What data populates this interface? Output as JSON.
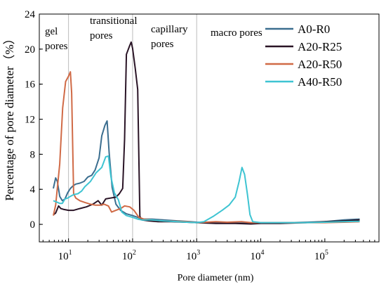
{
  "chart_data": {
    "type": "line",
    "xlabel": "Pore diameter (nm)",
    "ylabel": "Percentage of pore diameter（%）",
    "x_scale": "log",
    "xlim": [
      3.5,
      700000
    ],
    "ylim": [
      -2,
      24
    ],
    "x_ticks": [
      10,
      100,
      1000,
      10000,
      100000
    ],
    "x_tick_labels": [
      {
        "base": "10",
        "exp": "1"
      },
      {
        "base": "10",
        "exp": "2"
      },
      {
        "base": "10",
        "exp": "3"
      },
      {
        "base": "10",
        "exp": "4"
      },
      {
        "base": "10",
        "exp": "5"
      }
    ],
    "y_ticks": [
      0,
      4,
      8,
      12,
      16,
      20,
      24
    ],
    "y_tick_labels": [
      "0",
      "4",
      "8",
      "12",
      "16",
      "20",
      "24"
    ],
    "region_dividers": [
      10,
      100,
      1000
    ],
    "region_labels": [
      {
        "lines": [
          "gel",
          "pores"
        ]
      },
      {
        "lines": [
          "transitional",
          "pores"
        ]
      },
      {
        "lines": [
          "capillary",
          "pores"
        ]
      },
      {
        "lines": [
          "macro pores"
        ]
      }
    ],
    "legend_position": "top-right",
    "series": [
      {
        "name": "A0-R0",
        "color": "#3b6e8f",
        "points": [
          [
            5.8,
            4.1
          ],
          [
            6.3,
            5.3
          ],
          [
            6.7,
            4.9
          ],
          [
            7.3,
            3.2
          ],
          [
            8.0,
            2.7
          ],
          [
            8.8,
            2.9
          ],
          [
            9.7,
            3.6
          ],
          [
            10.7,
            4.1
          ],
          [
            11.8,
            4.4
          ],
          [
            13,
            4.6
          ],
          [
            15,
            4.7
          ],
          [
            17.5,
            4.9
          ],
          [
            20,
            5.4
          ],
          [
            23,
            5.6
          ],
          [
            26,
            6.2
          ],
          [
            30,
            7.6
          ],
          [
            33,
            10.1
          ],
          [
            37,
            11.3
          ],
          [
            40,
            11.8
          ],
          [
            43,
            8.2
          ],
          [
            48,
            4.2
          ],
          [
            55,
            2.3
          ],
          [
            65,
            1.6
          ],
          [
            80,
            1.2
          ],
          [
            100,
            1.0
          ],
          [
            120,
            0.8
          ],
          [
            140,
            0.6
          ],
          [
            200,
            0.6
          ],
          [
            300,
            0.5
          ],
          [
            500,
            0.4
          ],
          [
            800,
            0.3
          ],
          [
            1000,
            0.25
          ],
          [
            2000,
            0.2
          ],
          [
            5000,
            0.15
          ],
          [
            10000,
            0.15
          ],
          [
            30000,
            0.2
          ],
          [
            100000,
            0.3
          ],
          [
            200000,
            0.5
          ],
          [
            350000,
            0.6
          ]
        ]
      },
      {
        "name": "A20-R25",
        "color": "#2a1426",
        "points": [
          [
            5.8,
            1.1
          ],
          [
            6.3,
            1.3
          ],
          [
            7.0,
            2.1
          ],
          [
            7.6,
            1.8
          ],
          [
            8.5,
            1.7
          ],
          [
            10,
            1.6
          ],
          [
            12,
            1.6
          ],
          [
            15,
            1.8
          ],
          [
            19,
            2.0
          ],
          [
            24,
            2.3
          ],
          [
            29,
            2.7
          ],
          [
            33,
            2.2
          ],
          [
            38,
            2.9
          ],
          [
            45,
            3.0
          ],
          [
            55,
            3.1
          ],
          [
            62,
            3.5
          ],
          [
            70,
            4.1
          ],
          [
            75,
            9.7
          ],
          [
            80,
            19.4
          ],
          [
            90,
            20.4
          ],
          [
            95,
            20.8
          ],
          [
            100,
            20.1
          ],
          [
            110,
            17.8
          ],
          [
            120,
            15.4
          ],
          [
            130,
            0.9
          ],
          [
            140,
            0.5
          ],
          [
            180,
            0.4
          ],
          [
            250,
            0.3
          ],
          [
            400,
            0.3
          ],
          [
            700,
            0.25
          ],
          [
            1000,
            0.2
          ],
          [
            2000,
            0.1
          ],
          [
            4000,
            0.1
          ],
          [
            7000,
            0.05
          ],
          [
            10000,
            0.1
          ],
          [
            20000,
            0.1
          ],
          [
            50000,
            0.2
          ],
          [
            100000,
            0.3
          ],
          [
            200000,
            0.4
          ],
          [
            350000,
            0.5
          ]
        ]
      },
      {
        "name": "A20-R50",
        "color": "#d06a46",
        "points": [
          [
            5.8,
            1.0
          ],
          [
            6.3,
            2.2
          ],
          [
            7.3,
            6.9
          ],
          [
            8.1,
            13.3
          ],
          [
            9.0,
            16.3
          ],
          [
            10,
            16.9
          ],
          [
            10.7,
            17.4
          ],
          [
            11.2,
            15.0
          ],
          [
            12,
            3.5
          ],
          [
            13,
            3.0
          ],
          [
            15,
            2.7
          ],
          [
            18,
            2.5
          ],
          [
            22,
            2.3
          ],
          [
            26,
            2.2
          ],
          [
            32,
            2.2
          ],
          [
            36,
            2.3
          ],
          [
            42,
            2.1
          ],
          [
            47,
            1.4
          ],
          [
            55,
            1.6
          ],
          [
            65,
            1.8
          ],
          [
            75,
            2.1
          ],
          [
            90,
            2.0
          ],
          [
            105,
            1.6
          ],
          [
            125,
            0.8
          ],
          [
            150,
            0.6
          ],
          [
            200,
            0.5
          ],
          [
            300,
            0.4
          ],
          [
            500,
            0.35
          ],
          [
            700,
            0.3
          ],
          [
            1000,
            0.2
          ],
          [
            2000,
            0.3
          ],
          [
            3000,
            0.25
          ],
          [
            5000,
            0.3
          ],
          [
            7000,
            0.2
          ],
          [
            10000,
            0.2
          ],
          [
            20000,
            0.2
          ],
          [
            50000,
            0.2
          ],
          [
            100000,
            0.2
          ],
          [
            200000,
            0.25
          ],
          [
            350000,
            0.3
          ]
        ]
      },
      {
        "name": "A40-R50",
        "color": "#3ec4d2",
        "points": [
          [
            5.8,
            2.7
          ],
          [
            6.3,
            2.6
          ],
          [
            7.3,
            2.4
          ],
          [
            8.0,
            2.4
          ],
          [
            8.8,
            2.9
          ],
          [
            9.7,
            3.0
          ],
          [
            10.7,
            3.2
          ],
          [
            12,
            3.4
          ],
          [
            14,
            3.5
          ],
          [
            16,
            3.8
          ],
          [
            18,
            4.3
          ],
          [
            22,
            4.9
          ],
          [
            27,
            5.9
          ],
          [
            33,
            6.5
          ],
          [
            38,
            7.7
          ],
          [
            42,
            7.8
          ],
          [
            46,
            5.4
          ],
          [
            52,
            3.6
          ],
          [
            60,
            2.8
          ],
          [
            68,
            1.4
          ],
          [
            80,
            1.0
          ],
          [
            100,
            0.8
          ],
          [
            120,
            0.6
          ],
          [
            140,
            0.5
          ],
          [
            200,
            0.5
          ],
          [
            300,
            0.4
          ],
          [
            500,
            0.3
          ],
          [
            700,
            0.25
          ],
          [
            1000,
            0.2
          ],
          [
            1300,
            0.3
          ],
          [
            1800,
            0.9
          ],
          [
            2500,
            1.6
          ],
          [
            3200,
            2.2
          ],
          [
            4000,
            3.1
          ],
          [
            4600,
            4.9
          ],
          [
            5100,
            6.5
          ],
          [
            5600,
            5.7
          ],
          [
            6200,
            3.4
          ],
          [
            6800,
            1.1
          ],
          [
            7500,
            0.3
          ],
          [
            10000,
            0.2
          ],
          [
            20000,
            0.2
          ],
          [
            50000,
            0.2
          ],
          [
            100000,
            0.25
          ],
          [
            200000,
            0.3
          ],
          [
            350000,
            0.35
          ]
        ]
      }
    ]
  }
}
